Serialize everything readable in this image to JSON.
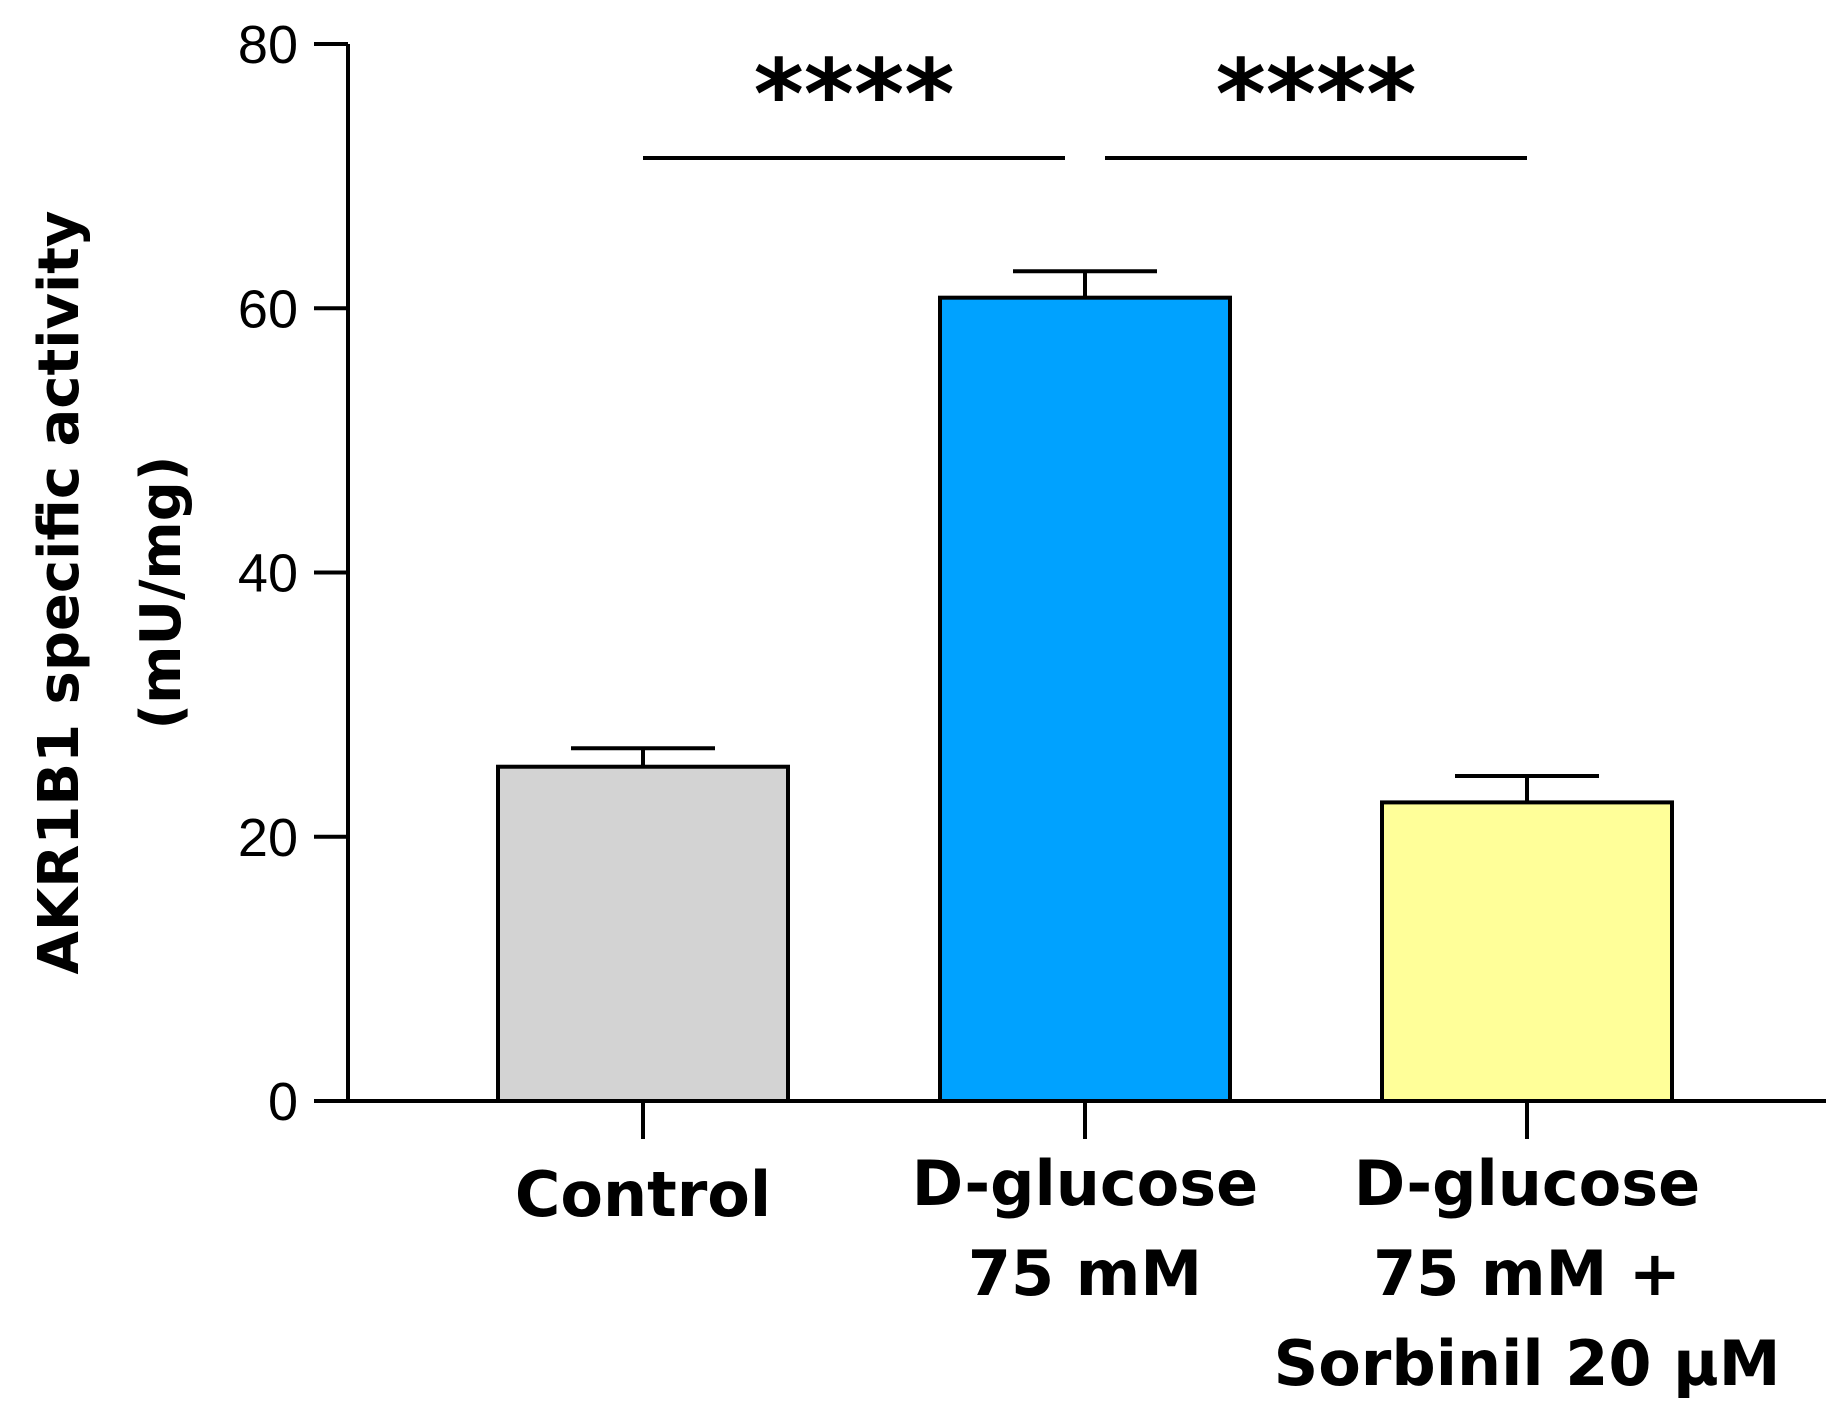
{
  "chart_data": {
    "type": "bar",
    "title": "",
    "xlabel": "",
    "ylabel_lines": [
      "AKR1B1 specific activity",
      "(mU/mg)"
    ],
    "ylim": [
      0,
      80
    ],
    "yticks": [
      0,
      20,
      40,
      60,
      80
    ],
    "ytick_labels": [
      "0",
      "20",
      "40",
      "60",
      "80"
    ],
    "categories": [
      {
        "lines": [
          "Control"
        ]
      },
      {
        "lines": [
          "D-glucose",
          "75 mM"
        ]
      },
      {
        "lines": [
          "D-glucose",
          "75 mM +",
          "Sorbinil 20 µM"
        ]
      }
    ],
    "values": [
      25.3,
      60.8,
      22.6
    ],
    "errors": [
      1.4,
      2.0,
      2.0
    ],
    "colors": [
      "#d3d3d3",
      "#00a2ff",
      "#ffff99"
    ],
    "significance": [
      {
        "from": 0,
        "to": 1,
        "label": "****"
      },
      {
        "from": 1,
        "to": 2,
        "label": "****"
      }
    ]
  }
}
